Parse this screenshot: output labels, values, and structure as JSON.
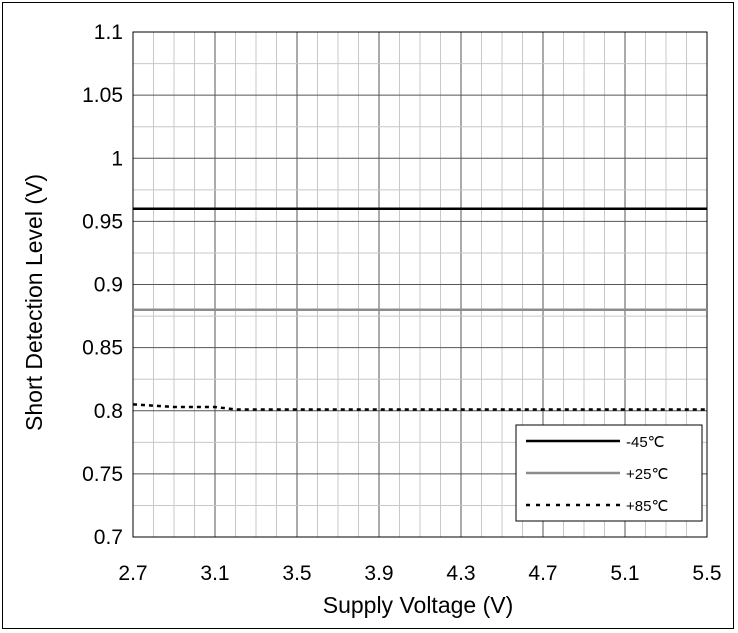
{
  "chart_data": {
    "type": "line",
    "title": "",
    "xlabel": "Supply Voltage (V)",
    "ylabel": "Short Detection Level (V)",
    "xlim": [
      2.7,
      5.5
    ],
    "ylim": [
      0.7,
      1.1
    ],
    "x_ticks": [
      "2.7",
      "3.1",
      "3.5",
      "3.9",
      "4.3",
      "4.7",
      "5.1",
      "5.5"
    ],
    "y_ticks": [
      "0.7",
      "0.75",
      "0.8",
      "0.85",
      "0.9",
      "0.95",
      "1",
      "1.05",
      "1.1"
    ],
    "grid": true,
    "legend_position": "bottom-right",
    "series": [
      {
        "name": "-45℃",
        "color": "#000000",
        "style": "solid",
        "x": [
          2.7,
          3.1,
          3.5,
          3.9,
          4.3,
          4.7,
          5.1,
          5.5
        ],
        "y": [
          0.96,
          0.96,
          0.96,
          0.96,
          0.96,
          0.96,
          0.96,
          0.96
        ]
      },
      {
        "name": "+25℃",
        "color": "#8c8c8c",
        "style": "solid",
        "x": [
          2.7,
          3.1,
          3.5,
          3.9,
          4.3,
          4.7,
          5.1,
          5.5
        ],
        "y": [
          0.88,
          0.88,
          0.88,
          0.88,
          0.88,
          0.88,
          0.88,
          0.88
        ]
      },
      {
        "name": "+85℃",
        "color": "#000000",
        "style": "dotted",
        "x": [
          2.7,
          2.9,
          3.0,
          3.1,
          3.15,
          3.2,
          3.5,
          3.9,
          4.3,
          4.7,
          5.1,
          5.5
        ],
        "y": [
          0.805,
          0.803,
          0.803,
          0.803,
          0.802,
          0.801,
          0.801,
          0.801,
          0.801,
          0.801,
          0.801,
          0.801
        ]
      }
    ]
  }
}
